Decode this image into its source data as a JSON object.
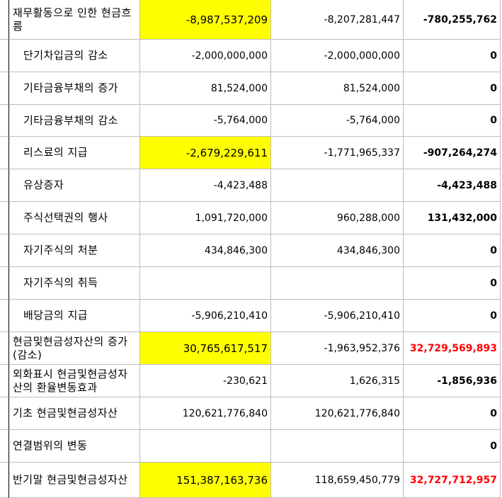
{
  "rows": [
    {
      "label": "재무활동으로 인한 현금흐름",
      "indent": false,
      "v1": "-8,987,537,209",
      "v2": "-8,207,281,447",
      "v3": "-780,255,762",
      "hl": true,
      "red": false
    },
    {
      "label": "단기차입금의 감소",
      "indent": true,
      "v1": "-2,000,000,000",
      "v2": "-2,000,000,000",
      "v3": "0",
      "hl": false,
      "red": false
    },
    {
      "label": "기타금융부채의 증가",
      "indent": true,
      "v1": "81,524,000",
      "v2": "81,524,000",
      "v3": "0",
      "hl": false,
      "red": false
    },
    {
      "label": "기타금융부채의 감소",
      "indent": true,
      "v1": "-5,764,000",
      "v2": "-5,764,000",
      "v3": "0",
      "hl": false,
      "red": false
    },
    {
      "label": "리스료의 지급",
      "indent": true,
      "v1": "-2,679,229,611",
      "v2": "-1,771,965,337",
      "v3": "-907,264,274",
      "hl": true,
      "red": false
    },
    {
      "label": "유상증자",
      "indent": true,
      "v1": "-4,423,488",
      "v2": "",
      "v3": "-4,423,488",
      "hl": false,
      "red": false
    },
    {
      "label": "주식선택권의 행사",
      "indent": true,
      "v1": "1,091,720,000",
      "v2": "960,288,000",
      "v3": "131,432,000",
      "hl": false,
      "red": false
    },
    {
      "label": "자기주식의 처분",
      "indent": true,
      "v1": "434,846,300",
      "v2": "434,846,300",
      "v3": "0",
      "hl": false,
      "red": false
    },
    {
      "label": "자기주식의 취득",
      "indent": true,
      "v1": "",
      "v2": "",
      "v3": "0",
      "hl": false,
      "red": false
    },
    {
      "label": "배당금의 지급",
      "indent": true,
      "v1": "-5,906,210,410",
      "v2": "-5,906,210,410",
      "v3": "0",
      "hl": false,
      "red": false
    },
    {
      "label": "현금및현금성자산의 증가(감소)",
      "indent": false,
      "v1": "30,765,617,517",
      "v2": "-1,963,952,376",
      "v3": "32,729,569,893",
      "hl": true,
      "red": true
    },
    {
      "label": "외화표시 현금및현금성자산의 환율변동효과",
      "indent": false,
      "v1": "-230,621",
      "v2": "1,626,315",
      "v3": "-1,856,936",
      "hl": false,
      "red": false
    },
    {
      "label": "기초 현금및현금성자산",
      "indent": false,
      "v1": "120,621,776,840",
      "v2": "120,621,776,840",
      "v3": "0",
      "hl": false,
      "red": false
    },
    {
      "label": "연결범위의 변동",
      "indent": false,
      "v1": "",
      "v2": "",
      "v3": "0",
      "hl": false,
      "red": false
    },
    {
      "label": "반기말 현금및현금성자산",
      "indent": false,
      "v1": "151,387,163,736",
      "v2": "118,659,450,779",
      "v3": "32,727,712,957",
      "hl": true,
      "red": true
    }
  ]
}
